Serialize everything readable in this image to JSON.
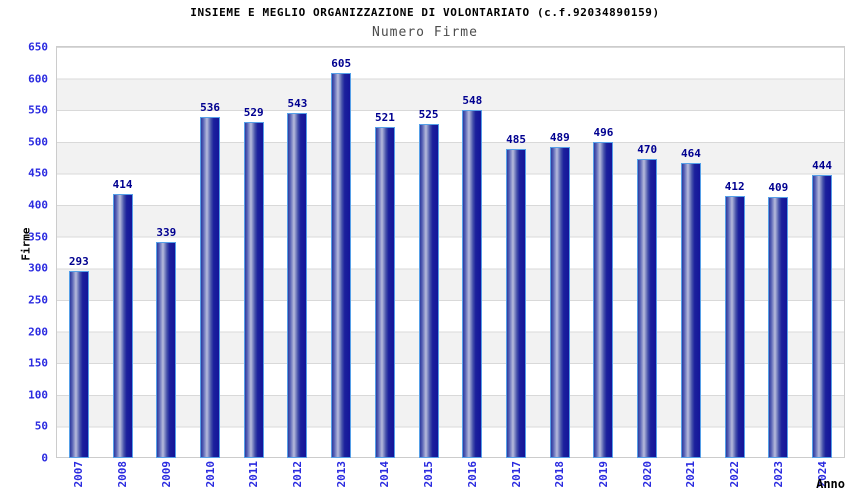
{
  "header": {
    "title": "INSIEME E MEGLIO ORGANIZZAZIONE DI VOLONTARIATO (c.f.92034890159)",
    "subtitle": "Numero Firme"
  },
  "chart_data": {
    "type": "bar",
    "title": "INSIEME E MEGLIO ORGANIZZAZIONE DI VOLONTARIATO (c.f.92034890159)",
    "subtitle": "Numero Firme",
    "xlabel": "Anno",
    "ylabel": "Firme",
    "categories": [
      "2007",
      "2008",
      "2009",
      "2010",
      "2011",
      "2012",
      "2013",
      "2014",
      "2015",
      "2016",
      "2017",
      "2018",
      "2019",
      "2020",
      "2021",
      "2022",
      "2023",
      "2024"
    ],
    "values": [
      293,
      414,
      339,
      536,
      529,
      543,
      605,
      521,
      525,
      548,
      485,
      489,
      496,
      470,
      464,
      412,
      409,
      444
    ],
    "ylim": [
      0,
      650
    ],
    "yticks": [
      0,
      50,
      100,
      150,
      200,
      250,
      300,
      350,
      400,
      450,
      500,
      550,
      600,
      650
    ],
    "grid": true,
    "legend": "none",
    "colors": {
      "bar_border": "#56a0e8",
      "bar_dark": "#14149a",
      "bar_highlight": "#b7bcdc",
      "tick_label": "#2b2be0",
      "value_label": "#000090",
      "title": "#000000",
      "subtitle": "#4c4c4c",
      "gridline": "#d9d9d9",
      "band": "#f2f2f2"
    }
  }
}
